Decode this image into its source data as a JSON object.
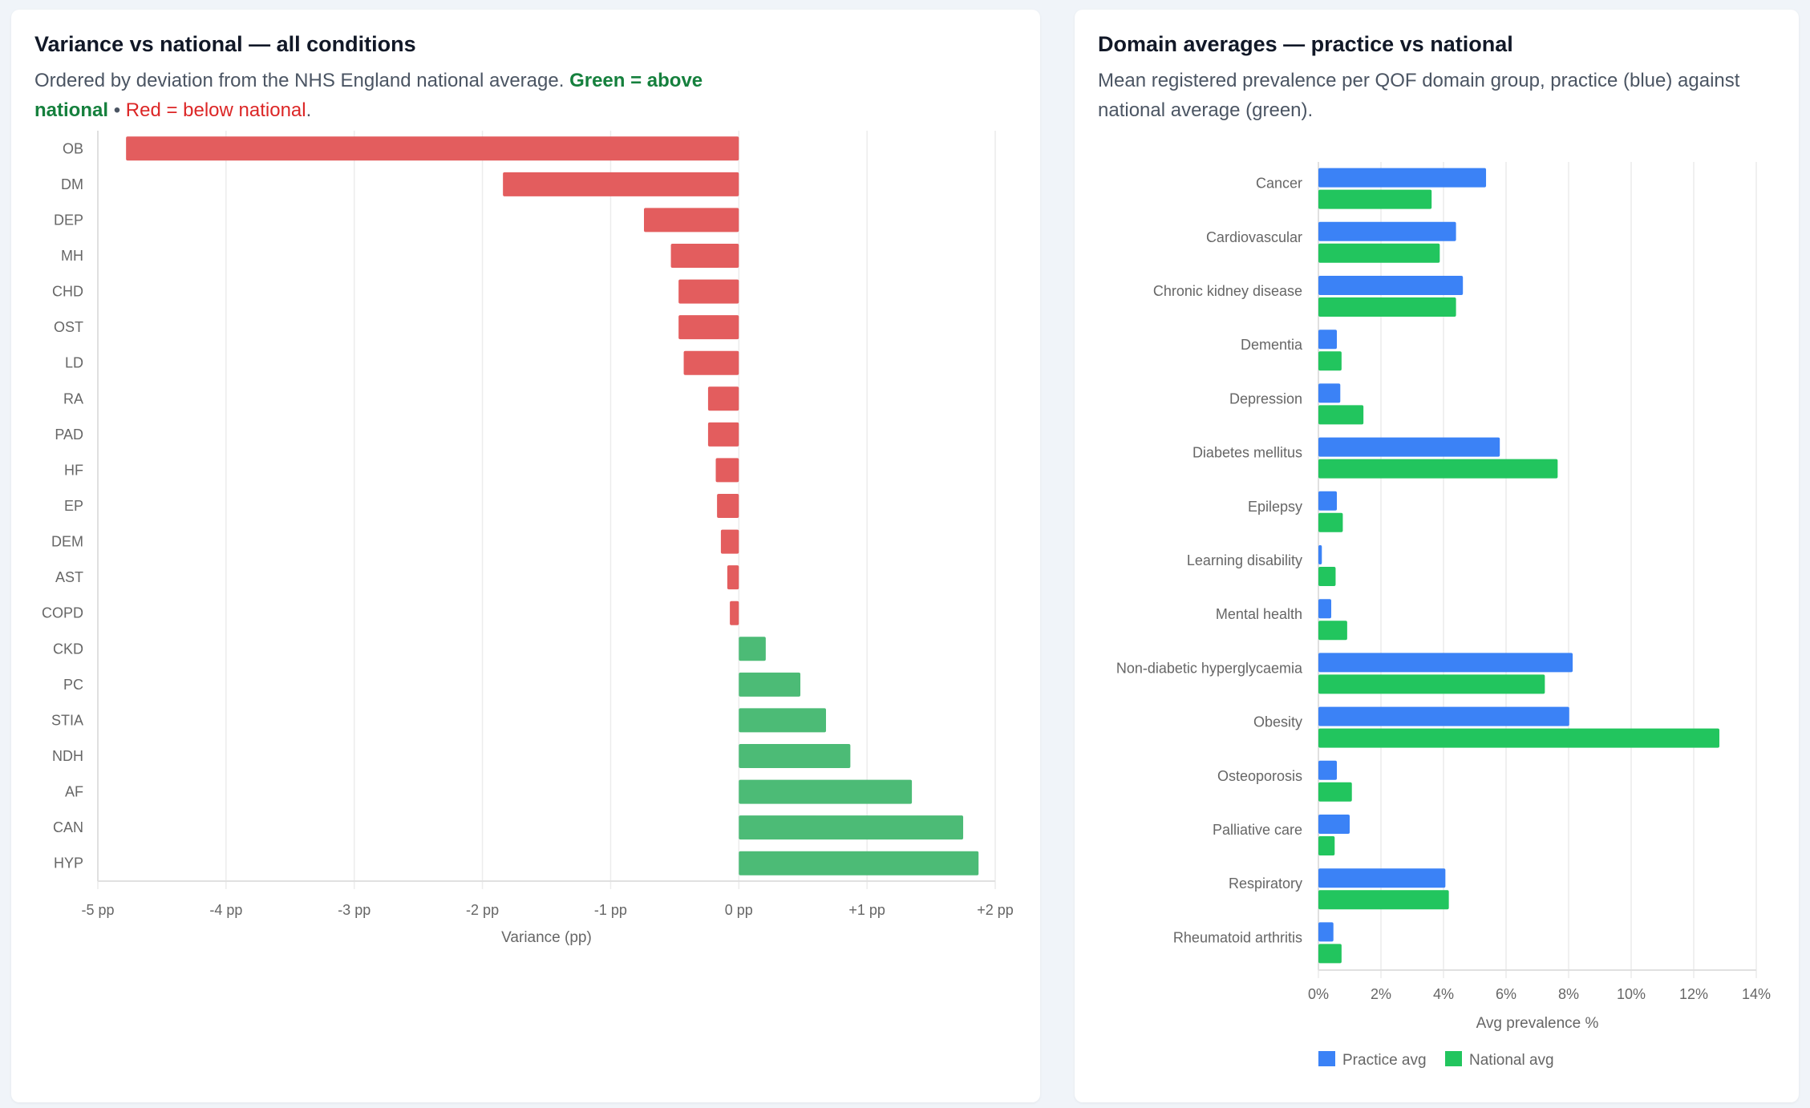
{
  "left_card": {
    "title": "Variance vs national — all conditions",
    "subtitle_prefix": "Ordered by deviation from the NHS England national average.",
    "legend_green": "Green = above national",
    "separator": "•",
    "legend_red": "Red = below national",
    "subtitle_suffix": "."
  },
  "right_card": {
    "title": "Domain averages — practice vs national",
    "subtitle": "Mean registered prevalence per QOF domain group, practice (blue) against national average (green)."
  },
  "chart_data": [
    {
      "type": "bar",
      "orientation": "horizontal",
      "categories": [
        "OB",
        "DM",
        "DEP",
        "MH",
        "CHD",
        "OST",
        "LD",
        "RA",
        "PAD",
        "HF",
        "EP",
        "DEM",
        "AST",
        "COPD",
        "CKD",
        "PC",
        "STIA",
        "NDH",
        "AF",
        "CAN",
        "HYP"
      ],
      "values": [
        -4.78,
        -1.84,
        -0.74,
        -0.53,
        -0.47,
        -0.47,
        -0.43,
        -0.24,
        -0.24,
        -0.18,
        -0.17,
        -0.14,
        -0.09,
        -0.07,
        0.21,
        0.48,
        0.68,
        0.87,
        1.35,
        1.75,
        1.87
      ],
      "xlabel": "Variance (pp)",
      "xlim": [
        -5,
        2
      ],
      "x_ticks": [
        "-5 pp",
        "-4 pp",
        "-3 pp",
        "-2 pp",
        "-1 pp",
        "0 pp",
        "+1 pp",
        "+2 pp"
      ],
      "grid": true,
      "colors": {
        "positive": "#4cbb76",
        "negative": "#e35d5e"
      }
    },
    {
      "type": "bar",
      "orientation": "horizontal",
      "categories": [
        "Cancer",
        "Cardiovascular",
        "Chronic kidney disease",
        "Dementia",
        "Depression",
        "Diabetes mellitus",
        "Epilepsy",
        "Learning disability",
        "Mental health",
        "Non-diabetic hyperglycaemia",
        "Obesity",
        "Osteoporosis",
        "Palliative care",
        "Respiratory",
        "Rheumatoid arthritis"
      ],
      "series": [
        {
          "name": "Practice avg",
          "color": "#3b82f6",
          "values": [
            5.36,
            4.4,
            4.62,
            0.59,
            0.7,
            5.8,
            0.59,
            0.11,
            0.41,
            8.13,
            8.02,
            0.59,
            1.0,
            4.06,
            0.48
          ]
        },
        {
          "name": "National avg",
          "color": "#22c55e",
          "values": [
            3.62,
            3.88,
            4.4,
            0.74,
            1.44,
            7.65,
            0.78,
            0.55,
            0.92,
            7.24,
            12.82,
            1.07,
            0.52,
            4.17,
            0.74
          ]
        }
      ],
      "xlabel": "Avg prevalence %",
      "xlim": [
        0,
        14
      ],
      "x_ticks": [
        "0%",
        "2%",
        "4%",
        "6%",
        "8%",
        "10%",
        "12%",
        "14%"
      ],
      "grid": true,
      "legend": "bottom-left"
    }
  ]
}
